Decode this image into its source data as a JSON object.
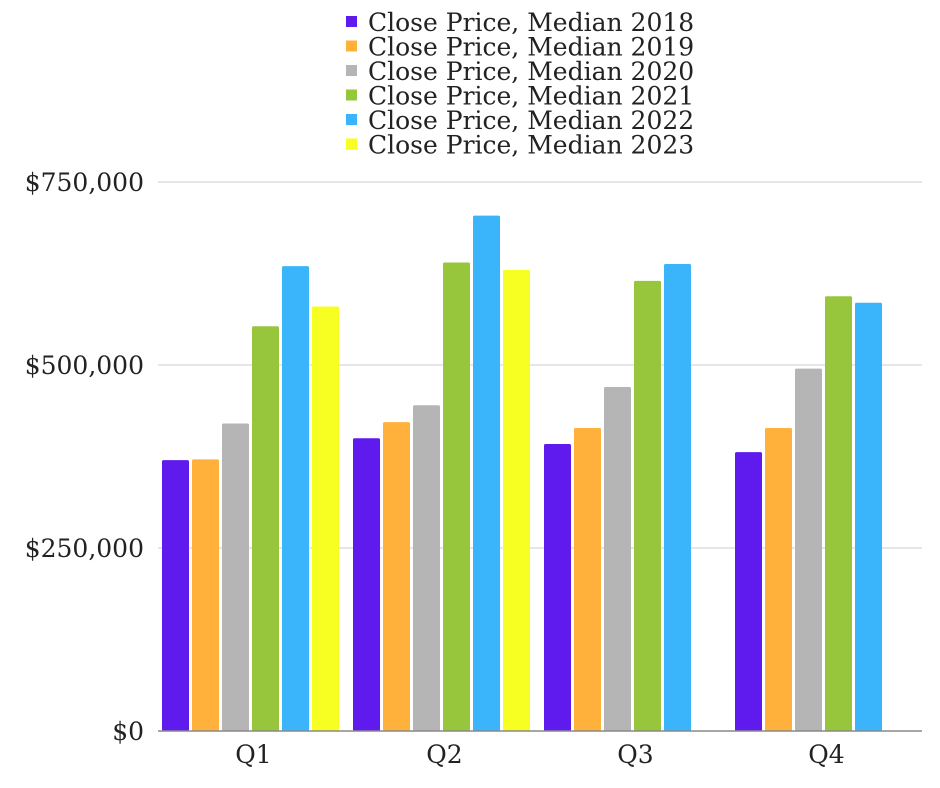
{
  "chart_data": {
    "type": "bar",
    "title": "",
    "xlabel": "",
    "ylabel": "",
    "categories": [
      "Q1",
      "Q2",
      "Q3",
      "Q4"
    ],
    "ylim": [
      0,
      750000
    ],
    "yticks": [
      {
        "value": 0,
        "label": "$0"
      },
      {
        "value": 250000,
        "label": "$250,000"
      },
      {
        "value": 500000,
        "label": "$500,000"
      },
      {
        "value": 750000,
        "label": "$750,000"
      }
    ],
    "grid": true,
    "legend_position": "top",
    "series": [
      {
        "name": "Close Price, Median 2018",
        "color": "#5f1aee",
        "values": [
          370000,
          400000,
          392000,
          381000
        ]
      },
      {
        "name": "Close Price, Median 2019",
        "color": "#ffb13b",
        "values": [
          371000,
          422000,
          414000,
          414000
        ]
      },
      {
        "name": "Close Price, Median 2020",
        "color": "#b5b5b5",
        "values": [
          420000,
          445000,
          470000,
          495000
        ]
      },
      {
        "name": "Close Price, Median 2021",
        "color": "#97c53c",
        "values": [
          553000,
          640000,
          615000,
          594000
        ]
      },
      {
        "name": "Close Price, Median 2022",
        "color": "#3ab5fc",
        "values": [
          635000,
          704000,
          638000,
          585000
        ]
      },
      {
        "name": "Close Price, Median 2023",
        "color": "#f7ff22",
        "values": [
          580000,
          630000,
          null,
          null
        ]
      }
    ]
  }
}
